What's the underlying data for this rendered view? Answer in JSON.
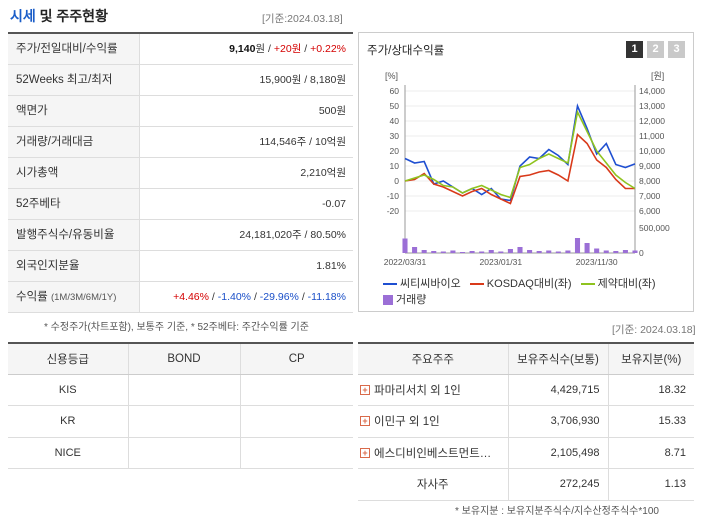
{
  "header": {
    "title_a": "시세",
    "title_b": " 및 주주현황",
    "date": "[기준:2024.03.18]"
  },
  "stats": [
    {
      "label": "주가/전일대비/수익률",
      "sub": "",
      "price": "9,140",
      "unit": "원 / ",
      "change": "+20원",
      "sep": " / ",
      "rate": "+0.22%"
    },
    {
      "label": "52Weeks 최고/최저",
      "sub": "",
      "value": "15,900원 / 8,180원"
    },
    {
      "label": "액면가",
      "sub": "",
      "value": "500원"
    },
    {
      "label": "거래량/거래대금",
      "sub": "",
      "value": "114,546주 / 10억원"
    },
    {
      "label": "시가총액",
      "sub": "",
      "value": "2,210억원"
    },
    {
      "label": "52주베타",
      "sub": "",
      "value": "-0.07"
    },
    {
      "label": "발행주식수/유동비율",
      "sub": "",
      "value": "24,181,020주 / 80.50%"
    },
    {
      "label": "외국인지분율",
      "sub": "",
      "value": "1.81%"
    },
    {
      "label": "수익률",
      "sub": "(1M/3M/6M/1Y)",
      "r1": "+4.46%",
      "r2": "-1.40%",
      "r3": "-29.96%",
      "r4": "-11.18%",
      "sep": "/ "
    }
  ],
  "note_left": "* 수정주가(차트포함), 보통주 기준, * 52주베타: 주간수익률 기준",
  "chart_panel": {
    "title": "주가/상대수익률",
    "tabs": [
      "1",
      "2",
      "3"
    ],
    "legend": [
      {
        "label": "씨티씨바이오",
        "color": "#1f4fd1",
        "kind": "line"
      },
      {
        "label": "KOSDAQ대비(좌)",
        "color": "#d93a1a",
        "kind": "line"
      },
      {
        "label": "제약대비(좌)",
        "color": "#8fc31f",
        "kind": "line"
      },
      {
        "label": "거래량",
        "color": "#9b6fd6",
        "kind": "bar"
      }
    ]
  },
  "chart_data": {
    "type": "line",
    "x": [
      "2022/03",
      "2022/04",
      "2022/05",
      "2022/06",
      "2022/07",
      "2022/08",
      "2022/09",
      "2022/10",
      "2022/11",
      "2022/12",
      "2023/01",
      "2023/02",
      "2023/03",
      "2023/04",
      "2023/05",
      "2023/06",
      "2023/07",
      "2023/08",
      "2023/09",
      "2023/10",
      "2023/11",
      "2023/12",
      "2024/01",
      "2024/02",
      "2024/03"
    ],
    "x_tick_labels": [
      "2022/03/31",
      "2023/01/31",
      "2023/11/30"
    ],
    "left_axis": {
      "unit": "[%]",
      "ticks": [
        60,
        50,
        40,
        30,
        20,
        10,
        0,
        -10,
        -20
      ],
      "ylim": [
        -20,
        60
      ]
    },
    "right_axis": {
      "unit": "[원]",
      "ticks": [
        "14,000",
        "13,000",
        "12,000",
        "11,000",
        "10,000",
        "9,000",
        "8,000",
        "7,000",
        "6,000"
      ],
      "ylim": [
        6000,
        14000
      ]
    },
    "volume_axis": {
      "ticks": [
        "500,000",
        "0"
      ],
      "ylim": [
        0,
        600000
      ]
    },
    "series": [
      {
        "name": "씨티씨바이오",
        "axis": "right",
        "color": "#1f4fd1",
        "values": [
          9500,
          9200,
          9300,
          7800,
          8000,
          7600,
          7200,
          7500,
          7100,
          7500,
          6800,
          6700,
          9000,
          9600,
          9500,
          10100,
          9700,
          9100,
          13000,
          11500,
          9800,
          10500,
          9100,
          8900,
          9140
        ]
      },
      {
        "name": "KOSDAQ대비(좌)",
        "axis": "left",
        "color": "#d93a1a",
        "values": [
          0,
          1,
          5,
          -2,
          -4,
          -7,
          -10,
          -7,
          -5,
          -9,
          -12,
          -15,
          3,
          4,
          6,
          7,
          4,
          0,
          31,
          25,
          14,
          9,
          1,
          -5,
          -5
        ]
      },
      {
        "name": "제약대비(좌)",
        "axis": "left",
        "color": "#8fc31f",
        "values": [
          0,
          2,
          4,
          1,
          -3,
          -4,
          -8,
          -5,
          -3,
          -6,
          -9,
          -11,
          9,
          11,
          15,
          18,
          15,
          12,
          46,
          33,
          20,
          12,
          4,
          -1,
          -5
        ]
      }
    ],
    "volume": {
      "name": "거래량",
      "color": "#9b6fd6",
      "values": [
        290000,
        120000,
        60000,
        40000,
        30000,
        50000,
        20000,
        40000,
        30000,
        60000,
        30000,
        80000,
        120000,
        60000,
        40000,
        50000,
        30000,
        50000,
        300000,
        200000,
        90000,
        50000,
        40000,
        60000,
        50000
      ]
    }
  },
  "date_right": "[기준: 2024.03.18]",
  "credit": {
    "headers": [
      "신용등급",
      "BOND",
      "CP"
    ],
    "rows": [
      [
        "KIS",
        "",
        ""
      ],
      [
        "KR",
        "",
        ""
      ],
      [
        "NICE",
        "",
        ""
      ]
    ]
  },
  "holders": {
    "headers": [
      "주요주주",
      "보유주식수(보통)",
      "보유지분(%)"
    ],
    "rows": [
      {
        "name": "파마리서치 외 1인",
        "shares": "4,429,715",
        "pct": "18.32",
        "expand": true
      },
      {
        "name": "이민구 외 1인",
        "shares": "3,706,930",
        "pct": "15.33",
        "expand": true
      },
      {
        "name": "에스디비인베스트먼트…",
        "shares": "2,105,498",
        "pct": "8.71",
        "expand": true
      },
      {
        "name": "자사주",
        "shares": "272,245",
        "pct": "1.13",
        "expand": false
      }
    ]
  },
  "note_right": "* 보유지분 : 보유지분주식수/지수산정주식수*100"
}
